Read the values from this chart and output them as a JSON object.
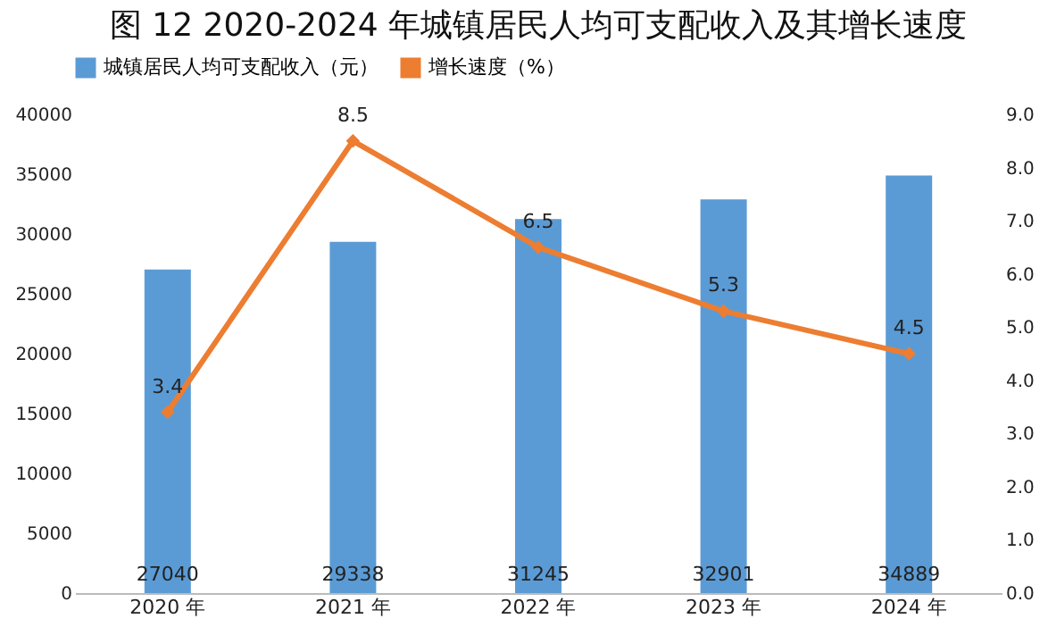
{
  "chart_data": {
    "type": "bar",
    "title": "图 12  2020-2024 年城镇居民人均可支配收入及其增长速度",
    "categories": [
      "2020 年",
      "2021 年",
      "2022 年",
      "2023 年",
      "2024 年"
    ],
    "series": [
      {
        "name": "城镇居民人均可支配收入（元）",
        "type": "bar",
        "color": "#5b9bd5",
        "values": [
          27040,
          29338,
          31245,
          32901,
          34889
        ]
      },
      {
        "name": "增长速度（%）",
        "type": "line",
        "axis": "y2",
        "color": "#ed7d31",
        "values": [
          3.4,
          8.5,
          6.5,
          5.3,
          4.5
        ]
      }
    ],
    "ylim": [
      0,
      40000
    ],
    "yticks": [
      0,
      5000,
      10000,
      15000,
      20000,
      25000,
      30000,
      35000,
      40000
    ],
    "y2lim": [
      0,
      9
    ],
    "y2ticks": [
      {
        "value": 0,
        "label": "0.0"
      },
      {
        "value": 1,
        "label": "1.0"
      },
      {
        "value": 2,
        "label": "2.0"
      },
      {
        "value": 3,
        "label": "3.0"
      },
      {
        "value": 4,
        "label": "4.0"
      },
      {
        "value": 5,
        "label": "5.0"
      },
      {
        "value": 6,
        "label": "6.0"
      },
      {
        "value": 7,
        "label": "7.0"
      },
      {
        "value": 8,
        "label": "8.0"
      },
      {
        "value": 9,
        "label": "9.0"
      }
    ],
    "legend": "top",
    "marker": "diamond",
    "line_style": "solid",
    "data_labels": true
  }
}
